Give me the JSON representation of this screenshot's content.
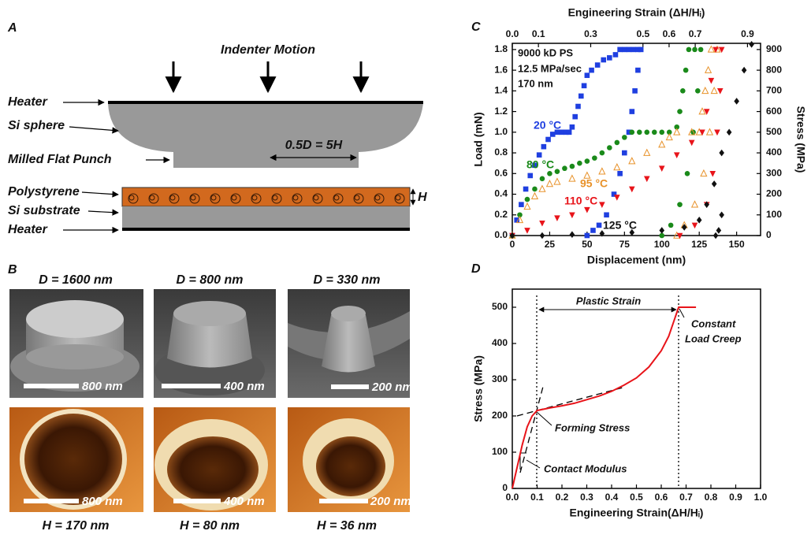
{
  "panel_a": {
    "label": "A",
    "indenter": "Indenter Motion",
    "heater_top": "Heater",
    "sphere": "Si sphere",
    "punch": "Milled Flat Punch",
    "dimension": "0.5D = 5H",
    "polystyrene": "Polystyrene",
    "thickness": "H",
    "substrate": "Si substrate",
    "heater_bottom": "Heater"
  },
  "panel_b": {
    "label": "B",
    "columns": [
      {
        "diameter": "D = 1600 nm",
        "sem_scale": "800 nm",
        "afm_scale": "800 nm",
        "height": "H = 170 nm"
      },
      {
        "diameter": "D = 800 nm",
        "sem_scale": "400 nm",
        "afm_scale": "400 nm",
        "height": "H = 80 nm"
      },
      {
        "diameter": "D = 330 nm",
        "sem_scale": "200 nm",
        "afm_scale": "200 nm",
        "height": "H = 36 nm"
      }
    ]
  },
  "chart_data": [
    {
      "type": "scatter",
      "label": "C",
      "x_label": "Displacement (nm)",
      "y_label": "Load (mN)",
      "y2_label": "Stress (MPa)",
      "x2_label": "Engineering Strain (ΔH/Hᵢ)",
      "annotations": [
        "9000 kD PS",
        "12.5 MPa/sec",
        "170 nm"
      ],
      "xlim": [
        0,
        166
      ],
      "xticks": [
        0,
        25,
        50,
        75,
        100,
        125,
        150
      ],
      "ylim": [
        0,
        1.86
      ],
      "yticks": [
        {
          "value": 0,
          "label": "0.0"
        },
        0.2,
        0.4,
        0.6,
        0.8,
        {
          "value": 1,
          "label": "1.0"
        },
        1.2,
        1.4,
        1.6,
        1.8
      ],
      "y2lim": [
        0,
        930
      ],
      "y2ticks": [
        0,
        100,
        200,
        300,
        400,
        500,
        600,
        700,
        800,
        900
      ],
      "x2lim": [
        0,
        0.95
      ],
      "x2ticks": [
        {
          "value": 0,
          "label": "0.0"
        },
        0.1,
        0.3,
        0.5,
        0.6,
        0.7,
        0.9
      ],
      "series": [
        {
          "name": "20 °C",
          "color": "#1f3fe0",
          "marker": "square",
          "x": [
            0,
            3,
            6,
            9,
            12,
            15,
            18,
            21,
            24,
            27,
            30,
            33,
            36,
            38,
            40,
            42,
            44,
            46,
            48,
            50,
            53,
            57,
            61,
            65,
            69,
            72,
            75,
            78,
            81,
            84,
            86,
            84,
            82,
            80,
            78,
            75,
            72,
            68,
            63,
            58,
            54,
            50
          ],
          "values": [
            0,
            0.15,
            0.3,
            0.45,
            0.58,
            0.68,
            0.78,
            0.86,
            0.93,
            0.98,
            1.0,
            1.0,
            1.0,
            1.0,
            1.05,
            1.15,
            1.25,
            1.35,
            1.45,
            1.55,
            1.6,
            1.65,
            1.7,
            1.72,
            1.75,
            1.8,
            1.8,
            1.8,
            1.8,
            1.8,
            1.8,
            1.6,
            1.4,
            1.2,
            1.0,
            0.8,
            0.6,
            0.4,
            0.2,
            0.1,
            0.05,
            0.0
          ]
        },
        {
          "name": "80 °C",
          "color": "#1a8a1a",
          "marker": "circle",
          "x": [
            0,
            5,
            10,
            15,
            20,
            25,
            30,
            35,
            40,
            45,
            50,
            55,
            60,
            65,
            70,
            75,
            80,
            85,
            90,
            95,
            100,
            105,
            110,
            112,
            114,
            116,
            118,
            122,
            126,
            124,
            121,
            117,
            112,
            106,
            100
          ],
          "values": [
            0,
            0.2,
            0.35,
            0.45,
            0.55,
            0.6,
            0.62,
            0.65,
            0.67,
            0.7,
            0.72,
            0.75,
            0.8,
            0.85,
            0.9,
            0.95,
            1.0,
            1.0,
            1.0,
            1.0,
            1.0,
            1.0,
            1.05,
            1.2,
            1.4,
            1.6,
            1.8,
            1.8,
            1.8,
            1.4,
            1.0,
            0.6,
            0.3,
            0.1,
            0.0
          ]
        },
        {
          "name": "95 °C",
          "color": "#e8922a",
          "marker": "triangle-open",
          "x": [
            0,
            5,
            10,
            15,
            20,
            25,
            30,
            40,
            50,
            60,
            70,
            80,
            90,
            100,
            105,
            110,
            120,
            125,
            127,
            129,
            131,
            133,
            137,
            135,
            132,
            128,
            122,
            115,
            110
          ],
          "values": [
            0,
            0.15,
            0.28,
            0.38,
            0.45,
            0.5,
            0.52,
            0.55,
            0.58,
            0.62,
            0.66,
            0.72,
            0.8,
            0.88,
            0.95,
            1.0,
            1.0,
            1.0,
            1.2,
            1.4,
            1.6,
            1.8,
            1.8,
            1.4,
            1.0,
            0.6,
            0.3,
            0.1,
            0.0
          ]
        },
        {
          "name": "110 °C",
          "color": "#e8141a",
          "marker": "triangle-down",
          "x": [
            0,
            10,
            20,
            30,
            40,
            50,
            60,
            70,
            80,
            90,
            100,
            110,
            120,
            127,
            130,
            133,
            136,
            140,
            139,
            137,
            134,
            130,
            122,
            112
          ],
          "values": [
            0,
            0.05,
            0.12,
            0.17,
            0.2,
            0.25,
            0.3,
            0.37,
            0.45,
            0.55,
            0.65,
            0.78,
            0.9,
            1.0,
            1.2,
            1.5,
            1.8,
            1.8,
            1.4,
            1.0,
            0.6,
            0.3,
            0.1,
            0.0
          ]
        },
        {
          "name": "125 °C",
          "color": "#111111",
          "marker": "diamond",
          "x": [
            0,
            20,
            40,
            60,
            80,
            100,
            115,
            125,
            130,
            135,
            140,
            145,
            150,
            155,
            160,
            140,
            138,
            136
          ],
          "values": [
            0,
            0,
            0.01,
            0.02,
            0.03,
            0.05,
            0.08,
            0.15,
            0.3,
            0.5,
            0.8,
            1.0,
            1.3,
            1.6,
            1.85,
            0.2,
            0.05,
            0
          ]
        }
      ]
    },
    {
      "type": "line",
      "label": "D",
      "x_label": "Engineering Strain(ΔH/Hᵢ)",
      "y_label": "Stress (MPa)",
      "annotations": [
        "Plastic Strain",
        "Constant",
        "Load Creep",
        "Forming Stress",
        "Contact Modulus"
      ],
      "xlim": [
        0,
        1
      ],
      "xticks": [
        {
          "value": 0,
          "label": "0.0"
        },
        0.1,
        0.2,
        0.3,
        0.4,
        0.5,
        0.6,
        0.7,
        0.8,
        0.9,
        {
          "value": 1,
          "label": "1.0"
        }
      ],
      "ylim": [
        0,
        550
      ],
      "yticks": [
        0,
        100,
        200,
        300,
        400,
        500
      ],
      "series": [
        {
          "color": "#e8141a",
          "x": [
            0,
            0.02,
            0.04,
            0.06,
            0.08,
            0.1,
            0.15,
            0.2,
            0.25,
            0.3,
            0.35,
            0.4,
            0.45,
            0.5,
            0.55,
            0.6,
            0.63,
            0.65,
            0.67,
            0.74
          ],
          "values": [
            0,
            60,
            120,
            170,
            200,
            215,
            222,
            228,
            235,
            245,
            255,
            268,
            285,
            305,
            335,
            380,
            420,
            460,
            500,
            500
          ]
        }
      ]
    }
  ]
}
